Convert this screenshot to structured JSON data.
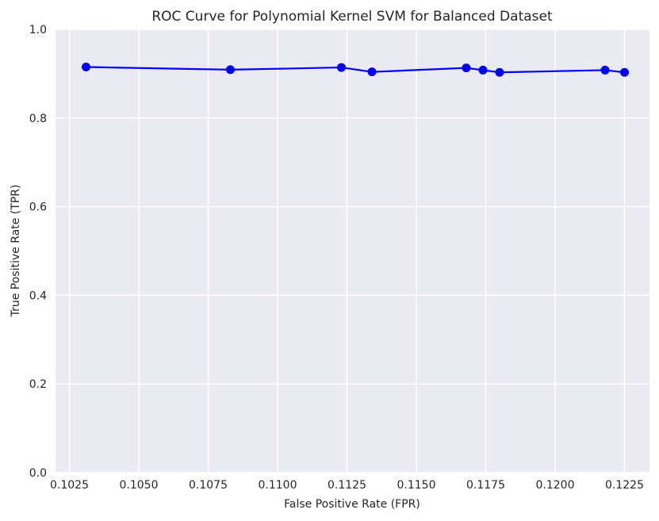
{
  "chart_data": {
    "type": "line",
    "title": "ROC Curve for Polynomial Kernel SVM for Balanced Dataset",
    "xlabel": "False Positive Rate (FPR)",
    "ylabel": "True Positive Rate (TPR)",
    "xlim": [
      0.102,
      0.1234
    ],
    "ylim": [
      0.0,
      1.0
    ],
    "xticks": [
      0.1025,
      0.105,
      0.1075,
      0.11,
      0.1125,
      0.115,
      0.1175,
      0.12,
      0.1225
    ],
    "xtick_labels": [
      "0.1025",
      "0.1050",
      "0.1075",
      "0.1100",
      "0.1125",
      "0.1150",
      "0.1175",
      "0.1200",
      "0.1225"
    ],
    "yticks": [
      0.0,
      0.2,
      0.4,
      0.6,
      0.8,
      1.0
    ],
    "ytick_labels": [
      "0.0",
      "0.2",
      "0.4",
      "0.6",
      "0.8",
      "1.0"
    ],
    "grid": true,
    "series": [
      {
        "name": "ROC",
        "color": "#0000ff",
        "x": [
          0.1031,
          0.1083,
          0.1123,
          0.1134,
          0.1168,
          0.1174,
          0.118,
          0.1218,
          0.1225
        ],
        "y": [
          0.915,
          0.909,
          0.914,
          0.904,
          0.913,
          0.908,
          0.903,
          0.908,
          0.903
        ]
      }
    ],
    "background_color": "#eaeaf2",
    "grid_color": "#ffffff"
  }
}
